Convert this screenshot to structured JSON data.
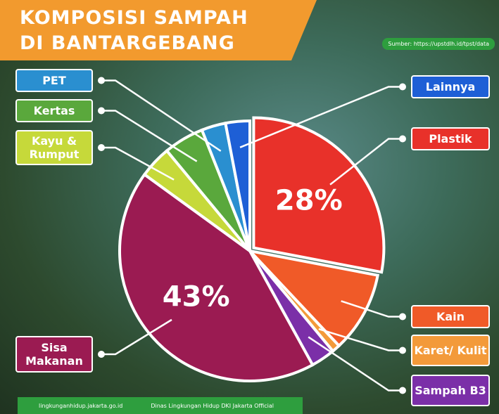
{
  "chart_data": {
    "type": "pie",
    "title": "KOMPOSISI SAMPAH DI BANTARGEBANG",
    "source": "Sumber: https://upstdlh.id/tpst/data",
    "footer": [
      "lingkunganhidup.jakarta.go.id",
      "Dinas Lingkungan Hidup DKI Jakarta Official"
    ],
    "categories": [
      "Plastik",
      "Kain",
      "Karet/ Kulit",
      "Sampah B3",
      "Sisa Makanan",
      "Kayu & Rumput",
      "Kertas",
      "PET",
      "Lainnya"
    ],
    "values": [
      28,
      10,
      1,
      3,
      43,
      4,
      5,
      3,
      3
    ],
    "value_labels": [
      "28%",
      null,
      null,
      null,
      "43%",
      null,
      null,
      null,
      null
    ],
    "colors": [
      "#e8312a",
      "#f05a28",
      "#f39a3a",
      "#7b2fa8",
      "#9b1b52",
      "#c6d93a",
      "#5aa83c",
      "#2a8fd0",
      "#1e5fd6"
    ]
  }
}
